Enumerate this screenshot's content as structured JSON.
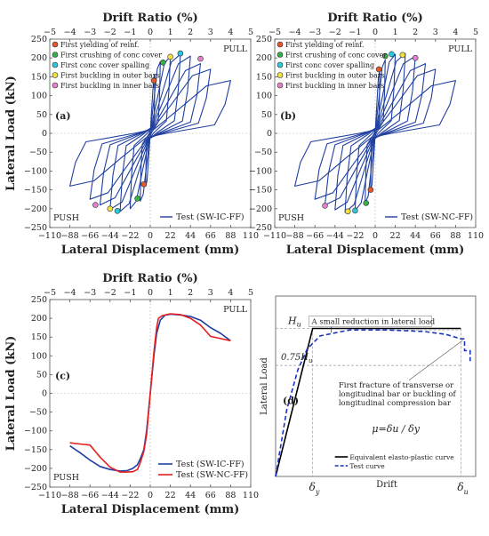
{
  "chart_data": [
    {
      "type": "line",
      "panel_label": "(a)",
      "title_top": "Drift Ratio (%)",
      "xlabel": "Lateral Displacement (mm)",
      "ylabel": "Lateral Load (kN)",
      "xlim": [
        -110,
        110
      ],
      "ylim": [
        -250,
        250
      ],
      "x_ticks": [
        "−110",
        "−88",
        "−66",
        "−44",
        "−22",
        "0",
        "22",
        "44",
        "66",
        "88",
        "110"
      ],
      "y_ticks": [
        "250",
        "200",
        "150",
        "100",
        "50",
        "0",
        "−50",
        "−100",
        "−150",
        "−200",
        "−250"
      ],
      "top_ticks": [
        "−5",
        "−4",
        "−3",
        "−2",
        "−1",
        "0",
        "1",
        "2",
        "3",
        "4",
        "5"
      ],
      "pull_label": "PULL",
      "push_label": "PUSH",
      "legend": [
        {
          "name": "First yielding of reinf.",
          "color": "#e4582b"
        },
        {
          "name": "First crushing of conc cover",
          "color": "#33b24a"
        },
        {
          "name": "First conc cover spalling",
          "color": "#29c8dc"
        },
        {
          "name": "First buckling in outer bars",
          "color": "#f2e23a"
        },
        {
          "name": "First buckling in inner bars",
          "color": "#e67fd0"
        }
      ],
      "series": [
        {
          "name": "Test (SW-IC-FF)",
          "color": "#1f3fa0"
        }
      ],
      "peak_loads_pull": [
        [
          5,
          155
        ],
        [
          11,
          190
        ],
        [
          22,
          205
        ],
        [
          33,
          210
        ],
        [
          44,
          205
        ],
        [
          55,
          185
        ],
        [
          66,
          170
        ],
        [
          88,
          140
        ]
      ],
      "peak_loads_push": [
        [
          -5,
          -140
        ],
        [
          -11,
          -180
        ],
        [
          -22,
          -200
        ],
        [
          -33,
          -207
        ],
        [
          -44,
          -202
        ],
        [
          -55,
          -190
        ],
        [
          -66,
          -175
        ],
        [
          -88,
          -140
        ]
      ],
      "markers": [
        {
          "x": 4,
          "y": 140,
          "color": "#e4582b"
        },
        {
          "x": 14,
          "y": 188,
          "color": "#33b24a"
        },
        {
          "x": 33,
          "y": 212,
          "color": "#29c8dc"
        },
        {
          "x": 22,
          "y": 203,
          "color": "#f2e23a"
        },
        {
          "x": 55,
          "y": 198,
          "color": "#e67fd0"
        },
        {
          "x": -7,
          "y": -135,
          "color": "#e4582b"
        },
        {
          "x": -14,
          "y": -173,
          "color": "#33b24a"
        },
        {
          "x": -36,
          "y": -206,
          "color": "#29c8dc"
        },
        {
          "x": -44,
          "y": -200,
          "color": "#f2e23a"
        },
        {
          "x": -60,
          "y": -190,
          "color": "#e67fd0"
        }
      ]
    },
    {
      "type": "line",
      "panel_label": "(b)",
      "title_top": "Drift Ratio (%)",
      "xlabel": "Lateral Displacement (mm)",
      "ylabel": "",
      "xlim": [
        -110,
        110
      ],
      "ylim": [
        -250,
        250
      ],
      "x_ticks": [
        "−110",
        "−88",
        "−66",
        "−44",
        "−22",
        "0",
        "22",
        "44",
        "66",
        "88",
        "110"
      ],
      "y_ticks": [
        "250",
        "200",
        "150",
        "100",
        "50",
        "0",
        "−50",
        "−100",
        "−150",
        "−200",
        "−250"
      ],
      "top_ticks": [
        "−5",
        "−4",
        "−3",
        "−2",
        "−1",
        "0",
        "1",
        "2",
        "3",
        "4",
        "5"
      ],
      "pull_label": "PULL",
      "push_label": "PUSH",
      "legend": [
        {
          "name": "First yielding of reinf.",
          "color": "#e4582b"
        },
        {
          "name": "First crushing of conc cover",
          "color": "#33b24a"
        },
        {
          "name": "First conc cover spalling",
          "color": "#29c8dc"
        },
        {
          "name": "First buckling in outer bars",
          "color": "#f2e23a"
        },
        {
          "name": "First buckling in inner bars",
          "color": "#e67fd0"
        }
      ],
      "series": [
        {
          "name": "Test (SW-NC-FF)",
          "color": "#1f3fa0"
        }
      ],
      "peak_loads_pull": [
        [
          5,
          165
        ],
        [
          11,
          195
        ],
        [
          22,
          210
        ],
        [
          33,
          212
        ],
        [
          44,
          205
        ],
        [
          55,
          185
        ],
        [
          66,
          170
        ],
        [
          88,
          140
        ]
      ],
      "peak_loads_push": [
        [
          -5,
          -150
        ],
        [
          -11,
          -185
        ],
        [
          -22,
          -205
        ],
        [
          -33,
          -210
        ],
        [
          -44,
          -203
        ],
        [
          -55,
          -190
        ],
        [
          -66,
          -175
        ],
        [
          -88,
          -140
        ]
      ],
      "markers": [
        {
          "x": 4,
          "y": 170,
          "color": "#e4582b"
        },
        {
          "x": 11,
          "y": 205,
          "color": "#33b24a"
        },
        {
          "x": 18,
          "y": 210,
          "color": "#29c8dc"
        },
        {
          "x": 30,
          "y": 208,
          "color": "#f2e23a"
        },
        {
          "x": 44,
          "y": 200,
          "color": "#e67fd0"
        },
        {
          "x": -5,
          "y": -150,
          "color": "#e4582b"
        },
        {
          "x": -10,
          "y": -185,
          "color": "#33b24a"
        },
        {
          "x": -22,
          "y": -205,
          "color": "#29c8dc"
        },
        {
          "x": -30,
          "y": -207,
          "color": "#f2e23a"
        },
        {
          "x": -55,
          "y": -192,
          "color": "#e67fd0"
        }
      ]
    },
    {
      "type": "line",
      "panel_label": "(c)",
      "title_top": "Drift Ratio (%)",
      "xlabel": "Lateral Displacement (mm)",
      "ylabel": "Lateral Load (kN)",
      "xlim": [
        -110,
        110
      ],
      "ylim": [
        -250,
        250
      ],
      "x_ticks": [
        "−110",
        "−88",
        "−66",
        "−44",
        "−22",
        "0",
        "22",
        "44",
        "66",
        "88",
        "110"
      ],
      "y_ticks": [
        "250",
        "200",
        "150",
        "100",
        "50",
        "0",
        "−50",
        "−100",
        "−150",
        "−200",
        "−250"
      ],
      "top_ticks": [
        "−5",
        "−4",
        "−3",
        "−2",
        "−1",
        "0",
        "1",
        "2",
        "3",
        "4",
        "5"
      ],
      "pull_label": "PULL",
      "push_label": "PUSH",
      "series": [
        {
          "name": "Test (SW-IC-FF)",
          "color": "#1f3fa0",
          "x": [
            -88,
            -77,
            -66,
            -55,
            -44,
            -33,
            -25,
            -19,
            -14,
            -11,
            -7,
            -4,
            0,
            4,
            7,
            11,
            16,
            22,
            33,
            44,
            55,
            66,
            77,
            88
          ],
          "y": [
            -140,
            -158,
            -178,
            -195,
            -203,
            -207,
            -206,
            -200,
            -190,
            -175,
            -150,
            -100,
            0,
            100,
            160,
            195,
            208,
            211,
            209,
            205,
            195,
            175,
            160,
            140
          ]
        },
        {
          "name": "Test (SW-NC-FF)",
          "color": "#e61e1e",
          "x": [
            -88,
            -77,
            -66,
            -55,
            -44,
            -33,
            -25,
            -19,
            -14,
            -11,
            -7,
            -4,
            0,
            4,
            7,
            9,
            13,
            22,
            33,
            44,
            55,
            66,
            77,
            88
          ],
          "y": [
            -132,
            -135,
            -138,
            -170,
            -197,
            -210,
            -210,
            -209,
            -203,
            -185,
            -155,
            -110,
            0,
            110,
            175,
            200,
            207,
            212,
            210,
            200,
            182,
            152,
            146,
            140
          ]
        }
      ]
    },
    {
      "type": "line",
      "panel_label": "(d)",
      "xlabel": "Drift",
      "ylabel": "Lateral Load",
      "annotations": {
        "hu": "H",
        "hu_sub": "u",
        "h75": "0.75H",
        "h75_sub": "u",
        "reduction": "A small reduction in lateral load",
        "fracture1": "First fracture of transverse or",
        "fracture2": "longitudinal bar or buckling of",
        "fracture3": "longitudinal compression bar",
        "ductility": "μ=δu / δy",
        "dy": "δ",
        "dy_sub": "y",
        "du": "δ",
        "du_sub": "u"
      },
      "series": [
        {
          "name": "Equivalent elasto-plastic curve",
          "color": "#000000",
          "style": "solid",
          "x": [
            0,
            1,
            5
          ],
          "y": [
            0,
            1,
            1
          ]
        },
        {
          "name": "Test curve",
          "color": "#1a35b8",
          "style": "dashed",
          "x": [
            0,
            0.3,
            0.6,
            0.85,
            1.2,
            2,
            3,
            4,
            4.6,
            5,
            5.1,
            5.1,
            5.25,
            5.25
          ],
          "y": [
            0,
            0.45,
            0.72,
            0.86,
            0.95,
            0.99,
            0.99,
            0.98,
            0.96,
            0.93,
            0.93,
            0.85,
            0.85,
            0.78
          ]
        }
      ]
    }
  ]
}
